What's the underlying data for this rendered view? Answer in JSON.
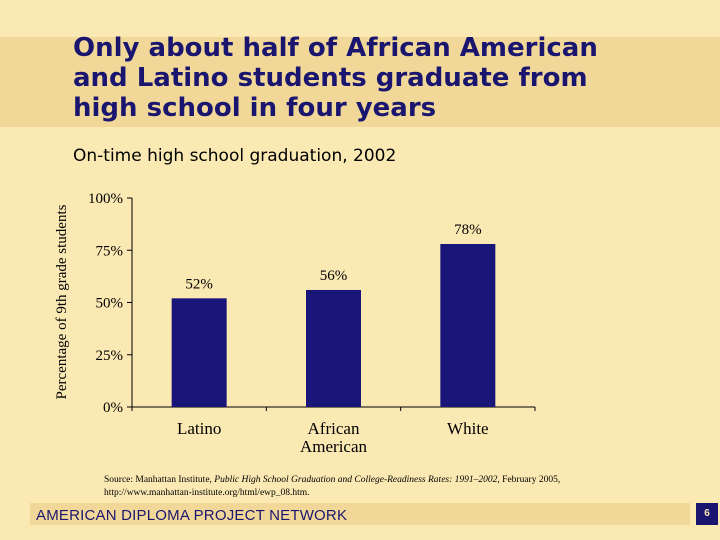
{
  "title": {
    "line1": "Only about half of African American",
    "line2": "and Latino students graduate from",
    "line3": "high school in four years"
  },
  "subtitle": "On-time high school graduation, 2002",
  "source": {
    "prefix": "Source: Manhattan Institute, ",
    "publication": "Public High School Graduation and College-Readiness Rates: 1991–2002",
    "suffix": ", February 2005,",
    "url": "http://www.manhattan-institute.org/html/ewp_08.htm."
  },
  "footer": {
    "org": "AMERICAN DIPLOMA PROJECT NETWORK",
    "page_number": "6"
  },
  "colors": {
    "background": "#fbe9b4",
    "title_band": "#f2d898",
    "title_text": "#1a1670",
    "bar": "#1a1679"
  },
  "chart_data": {
    "type": "bar",
    "categories": [
      "Latino",
      "African American",
      "White"
    ],
    "values": [
      52,
      56,
      78
    ],
    "data_labels": [
      "52%",
      "56%",
      "78%"
    ],
    "ylabel": "Percentage of 9th grade students",
    "ylim": [
      0,
      100
    ],
    "yticks": [
      0,
      25,
      50,
      75,
      100
    ],
    "ytick_labels": [
      "0%",
      "25%",
      "50%",
      "75%",
      "100%"
    ],
    "grid": false,
    "legend": "none"
  }
}
